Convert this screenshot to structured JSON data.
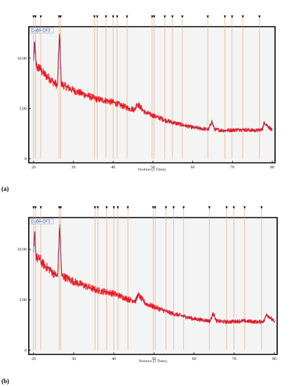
{
  "chart_data": [
    {
      "type": "line",
      "panel_label": "(a)",
      "legend": "Cu69-CF3",
      "xlabel": "Position [2 Theta]",
      "ylabel": "",
      "xlim": [
        19.5,
        80
      ],
      "ylim": [
        0,
        13
      ],
      "x_ticks": [
        "20",
        "30",
        "40",
        "50",
        "60",
        "70",
        "80"
      ],
      "y_ticks": [
        "0",
        "5.00",
        "10.00"
      ],
      "colors": {
        "measured": "#ff1a1a",
        "fit": "#1f3fa0",
        "reference": "#e8a070",
        "frame": "#000000"
      },
      "reference_peaks_2theta": [
        20.0,
        20.5,
        21.8,
        26.4,
        26.8,
        35.3,
        36.0,
        38.2,
        40.0,
        41.0,
        43.5,
        49.8,
        50.3,
        53.0,
        54.9,
        57.4,
        63.8,
        68.1,
        69.9,
        72.6,
        76.8
      ],
      "series": [
        {
          "x": [
            20.0,
            20.3,
            20.6,
            21.0,
            21.5,
            22.0,
            23.0,
            24.0,
            25.0,
            26.0,
            26.5,
            27.0,
            28.0,
            30.0,
            32.0,
            34.0,
            36.0,
            38.0,
            40.0,
            42.0,
            44.0,
            45.5,
            46.0,
            48.0,
            50.0,
            52.0,
            54.0,
            56.0,
            58.0,
            60.0,
            62.0,
            64.0,
            64.8,
            65.5,
            68.0,
            72.0,
            76.0,
            77.5,
            78.0,
            80.0
          ],
          "values": [
            9.8,
            11.6,
            9.4,
            9.0,
            9.1,
            8.7,
            8.3,
            8.0,
            7.6,
            7.3,
            12.4,
            7.4,
            7.2,
            6.8,
            6.5,
            6.2,
            5.9,
            5.8,
            5.6,
            5.3,
            5.0,
            4.9,
            5.5,
            4.6,
            4.3,
            4.0,
            3.7,
            3.5,
            3.3,
            3.1,
            3.0,
            2.9,
            3.7,
            2.9,
            2.8,
            2.9,
            2.8,
            2.9,
            3.6,
            2.8
          ]
        }
      ]
    },
    {
      "type": "line",
      "panel_label": "(b)",
      "legend": "Cu69-CF3",
      "xlabel": "Position [2 Theta]",
      "ylabel": "",
      "xlim": [
        19.5,
        80
      ],
      "ylim": [
        0,
        13
      ],
      "x_ticks": [
        "20",
        "30",
        "40",
        "50",
        "60",
        "70",
        "80"
      ],
      "y_ticks": [
        "0",
        "5.00",
        "10.00"
      ],
      "colors": {
        "measured": "#ff1a1a",
        "fit": "#1f3fa0",
        "reference": "#e8a070",
        "frame": "#000000"
      },
      "reference_peaks_2theta": [
        20.0,
        20.5,
        21.8,
        26.4,
        26.8,
        35.3,
        36.0,
        38.2,
        40.0,
        41.0,
        43.5,
        49.8,
        50.3,
        53.0,
        54.9,
        57.4,
        63.8,
        68.1,
        69.9,
        72.6,
        76.8
      ],
      "series": [
        {
          "x": [
            20.0,
            20.3,
            20.6,
            21.0,
            21.5,
            22.0,
            23.0,
            24.0,
            25.0,
            26.0,
            26.5,
            27.0,
            28.0,
            30.0,
            32.0,
            34.0,
            36.0,
            38.0,
            40.0,
            42.0,
            44.0,
            45.5,
            46.0,
            48.0,
            50.0,
            52.0,
            54.0,
            56.0,
            58.0,
            60.0,
            62.0,
            64.0,
            64.8,
            65.5,
            68.0,
            72.0,
            76.0,
            77.5,
            78.0,
            80.0
          ],
          "values": [
            9.8,
            11.6,
            9.4,
            9.0,
            9.1,
            8.7,
            8.3,
            8.0,
            7.6,
            7.3,
            12.4,
            7.4,
            7.2,
            6.8,
            6.5,
            6.2,
            5.9,
            5.8,
            5.6,
            5.3,
            5.0,
            4.9,
            5.5,
            4.6,
            4.3,
            4.0,
            3.7,
            3.5,
            3.3,
            3.1,
            3.0,
            2.9,
            3.7,
            2.9,
            2.8,
            2.9,
            2.8,
            2.9,
            3.6,
            2.8
          ]
        }
      ]
    }
  ]
}
